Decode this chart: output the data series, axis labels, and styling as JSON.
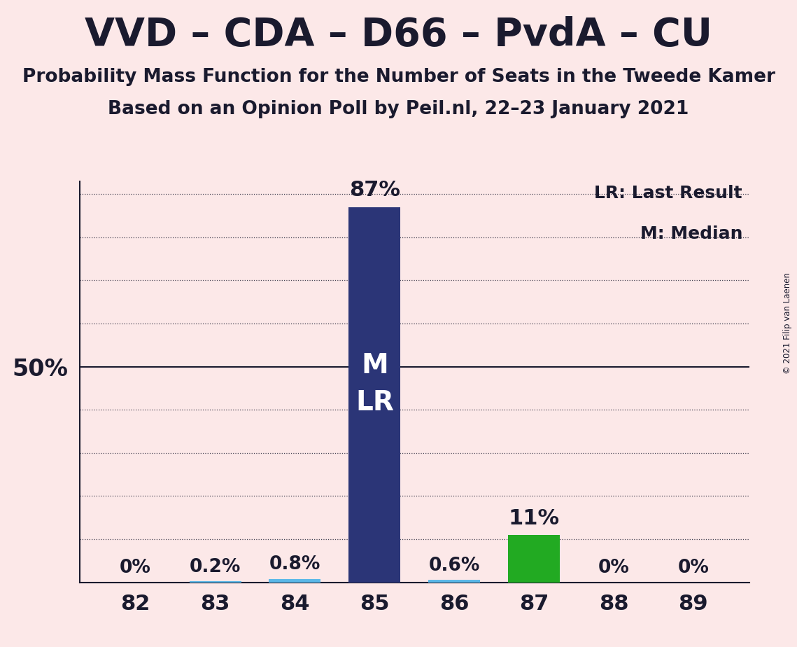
{
  "title": "VVD – CDA – D66 – PvdA – CU",
  "subtitle1": "Probability Mass Function for the Number of Seats in the Tweede Kamer",
  "subtitle2": "Based on an Opinion Poll by Peil.nl, 22–23 January 2021",
  "copyright": "© 2021 Filip van Laenen",
  "categories": [
    82,
    83,
    84,
    85,
    86,
    87,
    88,
    89
  ],
  "values": [
    0.0,
    0.2,
    0.8,
    87.0,
    0.6,
    11.0,
    0.0,
    0.0
  ],
  "bar_colors": [
    "#5bb8e8",
    "#5bb8e8",
    "#5bb8e8",
    "#2b3577",
    "#5bb8e8",
    "#22aa22",
    "#5bb8e8",
    "#5bb8e8"
  ],
  "label_texts": [
    "0%",
    "0.2%",
    "0.8%",
    "87%",
    "0.6%",
    "11%",
    "0%",
    "0%"
  ],
  "median_seat": 85,
  "background_color": "#fce8e8",
  "text_color": "#1a1a2e",
  "title_fontsize": 40,
  "subtitle1_fontsize": 19,
  "subtitle2_fontsize": 19,
  "ylabel_50": "50%",
  "ylim": [
    0,
    93
  ],
  "ytick_dotted": [
    10,
    20,
    30,
    40,
    60,
    70,
    80,
    90
  ],
  "ytick_solid": [
    50
  ],
  "legend_lr": "LR: Last Result",
  "legend_m": "M: Median",
  "bar_width": 0.65
}
